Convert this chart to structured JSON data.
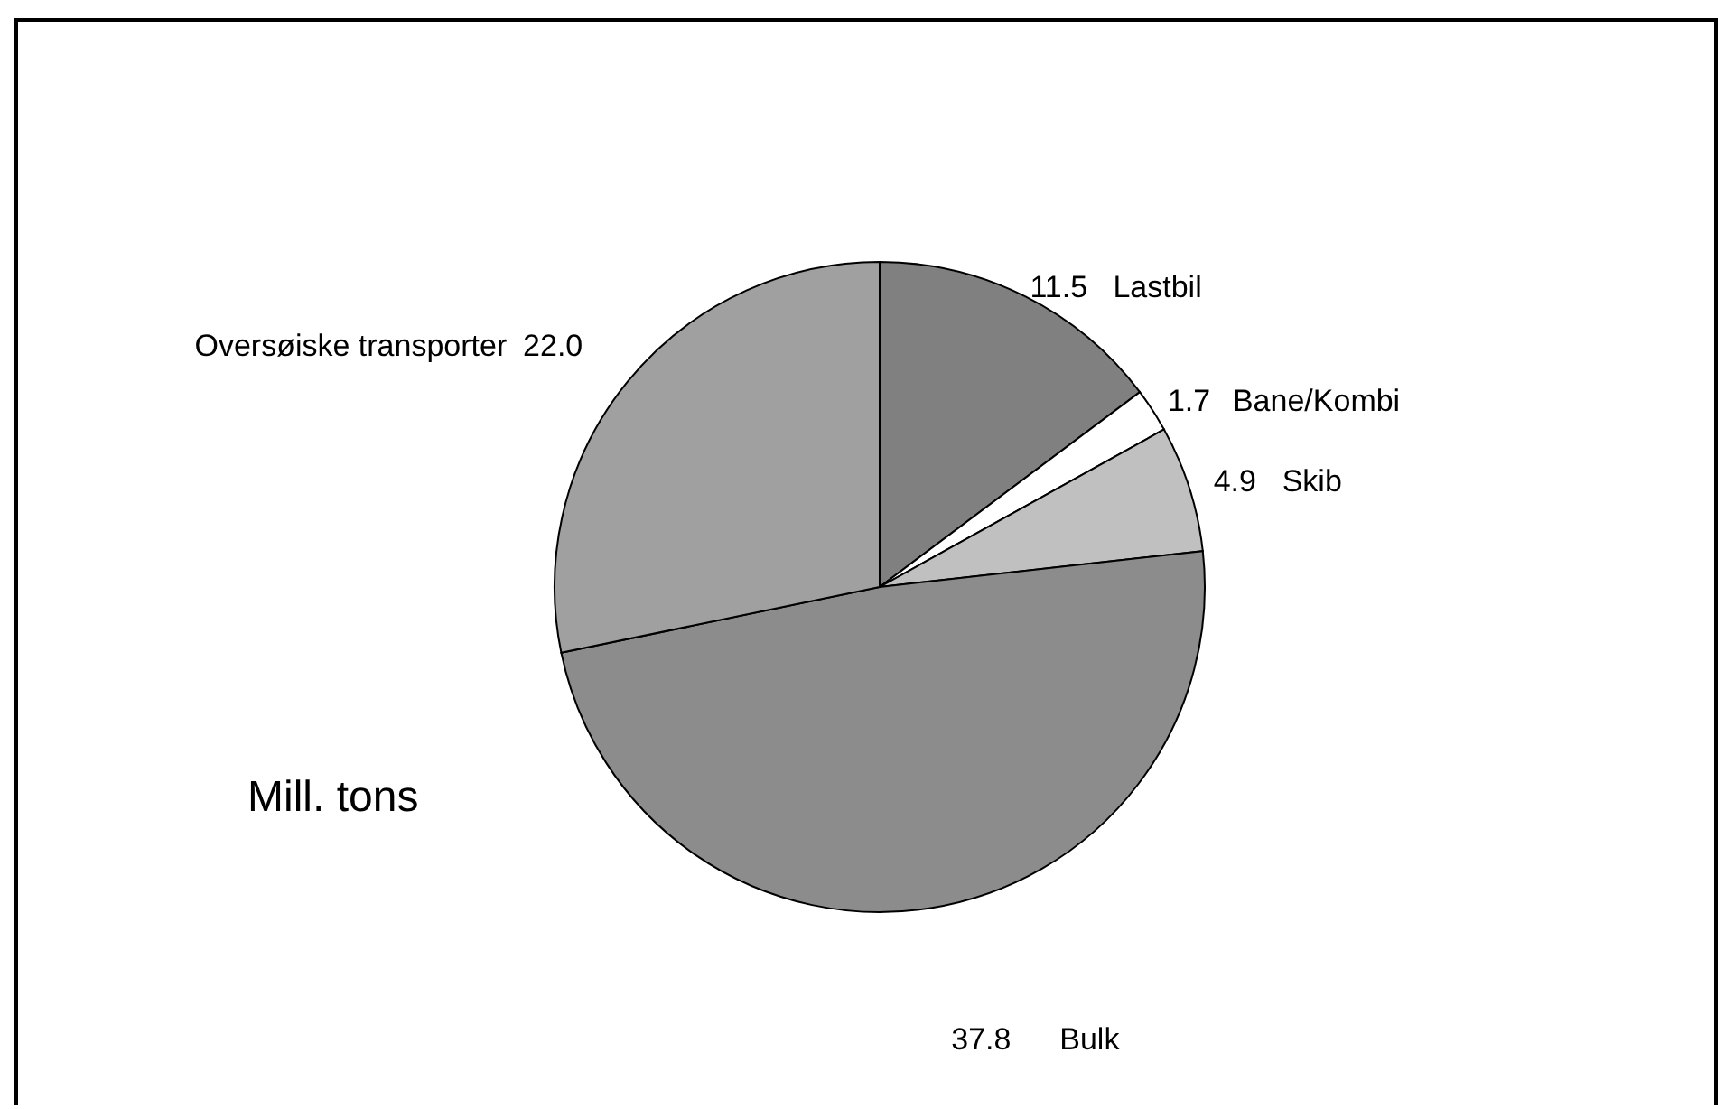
{
  "chart_data": {
    "type": "pie",
    "categories": [
      "Lastbil",
      "Bane/Kombi",
      "Skib",
      "Bulk",
      "Oversøiske transporter"
    ],
    "values": [
      11.5,
      1.7,
      4.9,
      37.8,
      22.0
    ],
    "value_labels": [
      "11.5",
      "1.7",
      "4.9",
      "37.8",
      "22.0"
    ],
    "colors": [
      "#808080",
      "#ffffff",
      "#c0c0c0",
      "#8c8c8c",
      "#a0a0a0"
    ],
    "annotations": [
      "Mill. tons"
    ]
  }
}
